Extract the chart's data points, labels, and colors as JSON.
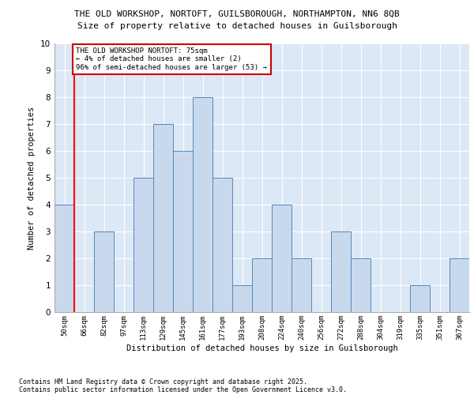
{
  "title_line1": "THE OLD WORKSHOP, NORTOFT, GUILSBOROUGH, NORTHAMPTON, NN6 8QB",
  "title_line2": "Size of property relative to detached houses in Guilsborough",
  "xlabel": "Distribution of detached houses by size in Guilsborough",
  "ylabel": "Number of detached properties",
  "categories": [
    "50sqm",
    "66sqm",
    "82sqm",
    "97sqm",
    "113sqm",
    "129sqm",
    "145sqm",
    "161sqm",
    "177sqm",
    "193sqm",
    "208sqm",
    "224sqm",
    "240sqm",
    "256sqm",
    "272sqm",
    "288sqm",
    "304sqm",
    "319sqm",
    "335sqm",
    "351sqm",
    "367sqm"
  ],
  "values": [
    4,
    0,
    3,
    0,
    5,
    7,
    6,
    8,
    5,
    1,
    2,
    4,
    2,
    0,
    3,
    2,
    0,
    0,
    1,
    0,
    2
  ],
  "bar_color": "#c8d9ee",
  "bar_edge_color": "#5588bb",
  "red_line_x": 0.5,
  "annotation_text": "THE OLD WORKSHOP NORTOFT: 75sqm\n← 4% of detached houses are smaller (2)\n96% of semi-detached houses are larger (53) →",
  "annotation_box_color": "#ffffff",
  "annotation_box_edge_color": "#cc0000",
  "ylim": [
    0,
    10
  ],
  "yticks": [
    0,
    1,
    2,
    3,
    4,
    5,
    6,
    7,
    8,
    9,
    10
  ],
  "plot_bg_color": "#dce8f5",
  "grid_color": "#ffffff",
  "footer_line1": "Contains HM Land Registry data © Crown copyright and database right 2025.",
  "footer_line2": "Contains public sector information licensed under the Open Government Licence v3.0."
}
